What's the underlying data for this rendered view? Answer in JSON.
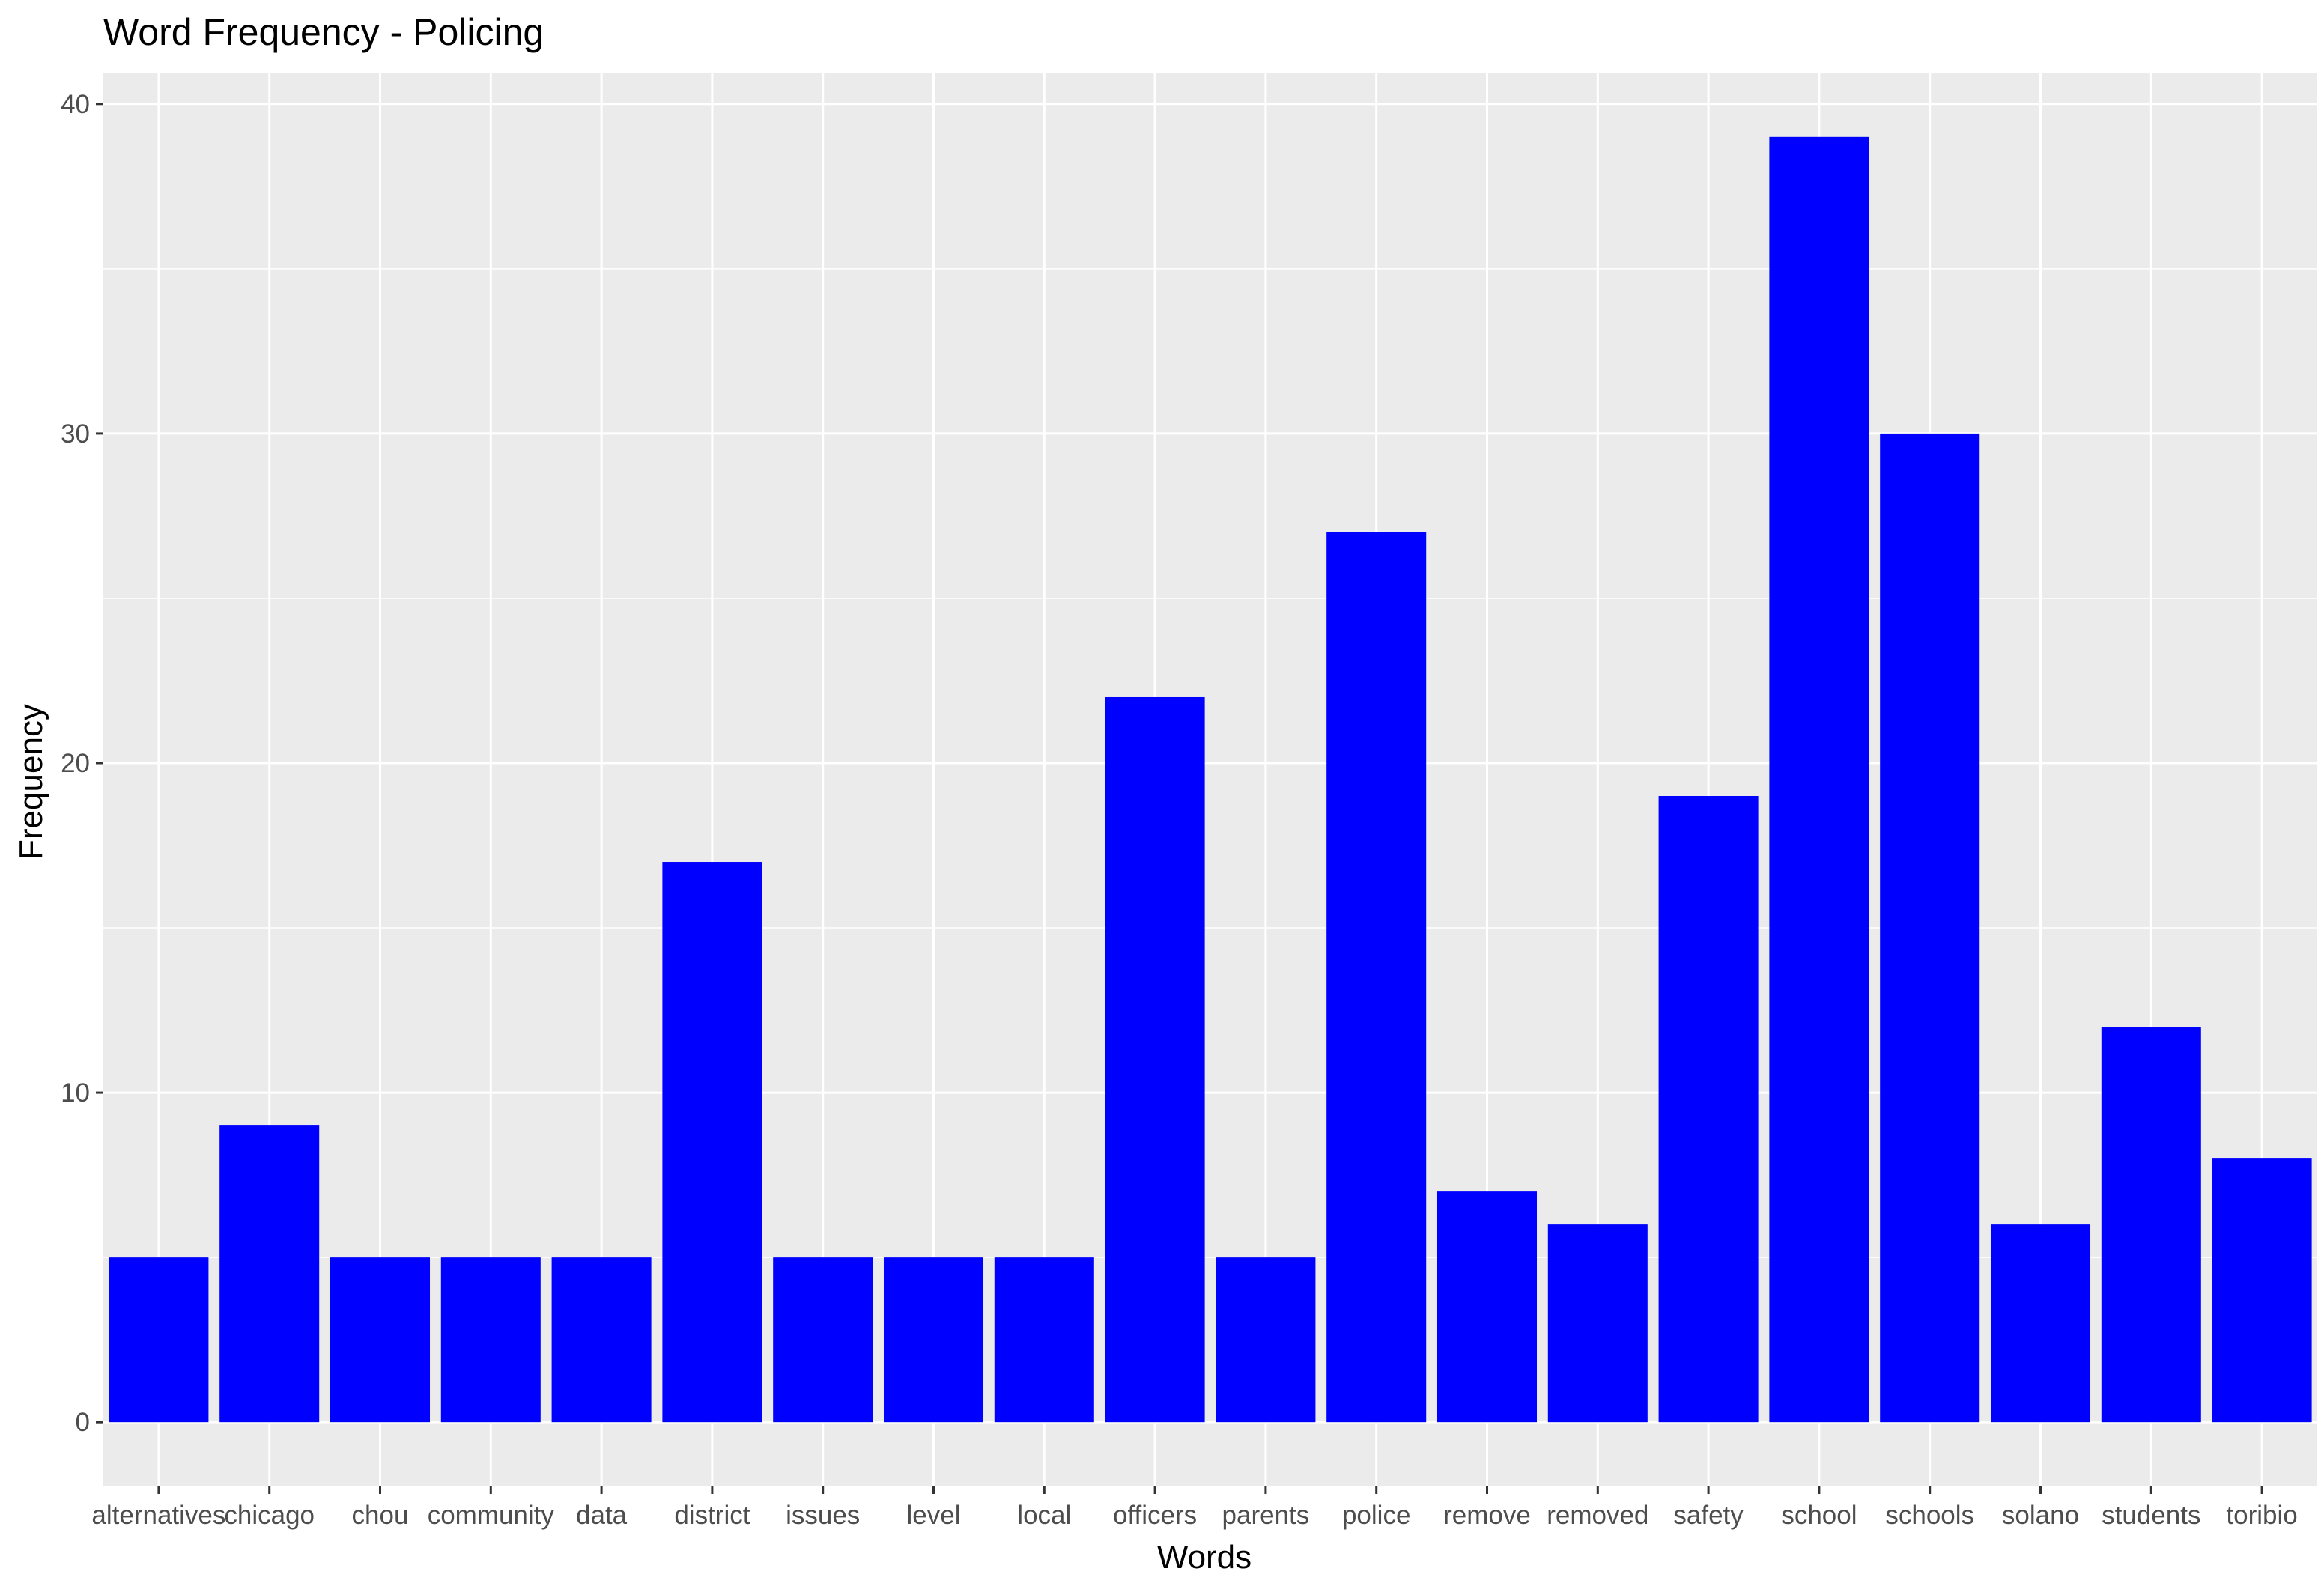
{
  "chart_data": {
    "type": "bar",
    "title": "Word Frequency - Policing",
    "xlabel": "Words",
    "ylabel": "Frequency",
    "categories": [
      "alternatives",
      "chicago",
      "chou",
      "community",
      "data",
      "district",
      "issues",
      "level",
      "local",
      "officers",
      "parents",
      "police",
      "remove",
      "removed",
      "safety",
      "school",
      "schools",
      "solano",
      "students",
      "toribio"
    ],
    "values": [
      5,
      9,
      5,
      5,
      5,
      17,
      5,
      5,
      5,
      22,
      5,
      27,
      7,
      6,
      19,
      39,
      30,
      6,
      12,
      8
    ],
    "ylim": [
      -1.95,
      40.95
    ],
    "yticks": [
      0,
      10,
      20,
      30,
      40
    ],
    "grid": true,
    "legend": "none",
    "colors": {
      "bar": "#0000ff",
      "panel": "#ebebeb",
      "grid_major": "#ffffff",
      "tick_text": "#4d4d4d"
    }
  }
}
